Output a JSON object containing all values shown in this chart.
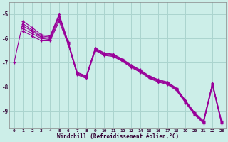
{
  "xlabel": "Windchill (Refroidissement éolien,°C)",
  "background_color": "#cceee8",
  "grid_color": "#aad4ce",
  "line_color": "#990099",
  "xlim": [
    -0.5,
    23.5
  ],
  "ylim": [
    -9.7,
    -4.5
  ],
  "yticks": [
    -9,
    -8,
    -7,
    -6,
    -5
  ],
  "xticks": [
    0,
    1,
    2,
    3,
    4,
    5,
    6,
    7,
    8,
    9,
    10,
    11,
    12,
    13,
    14,
    15,
    16,
    17,
    18,
    19,
    20,
    21,
    22,
    23
  ],
  "series": [
    [
      -7.0,
      -5.3,
      -5.55,
      -5.85,
      -5.9,
      -5.0,
      -6.15,
      -7.4,
      -7.55,
      -6.4,
      -6.6,
      -6.65,
      -6.85,
      -7.1,
      -7.3,
      -7.55,
      -7.7,
      -7.8,
      -8.05,
      -8.55,
      -9.05,
      -9.4,
      -7.85,
      -9.4
    ],
    [
      null,
      -5.4,
      -5.65,
      -5.9,
      -5.95,
      -5.05,
      -6.17,
      -7.42,
      -7.57,
      -6.42,
      -6.62,
      -6.67,
      -6.87,
      -7.12,
      -7.32,
      -7.57,
      -7.72,
      -7.82,
      -8.07,
      -8.57,
      -9.07,
      -9.42,
      -7.87,
      -9.42
    ],
    [
      null,
      -5.5,
      -5.7,
      -5.95,
      -6.0,
      -5.1,
      -6.2,
      -7.45,
      -7.6,
      -6.45,
      -6.65,
      -6.7,
      -6.9,
      -7.15,
      -7.35,
      -7.6,
      -7.75,
      -7.85,
      -8.1,
      -8.6,
      -9.1,
      -9.45,
      -7.9,
      -9.45
    ],
    [
      null,
      -5.6,
      -5.8,
      -6.0,
      -6.05,
      -5.2,
      -6.22,
      -7.47,
      -7.62,
      -6.47,
      -6.67,
      -6.72,
      -6.92,
      -7.17,
      -7.37,
      -7.62,
      -7.77,
      -7.87,
      -8.12,
      -8.62,
      -9.12,
      -9.47,
      -7.92,
      -9.47
    ],
    [
      null,
      -5.7,
      -5.9,
      -6.1,
      -6.1,
      -5.3,
      -6.25,
      -7.5,
      -7.65,
      -6.5,
      -6.7,
      -6.75,
      -6.95,
      -7.2,
      -7.4,
      -7.65,
      -7.8,
      -7.9,
      -8.15,
      -8.65,
      -9.15,
      -9.5,
      -7.95,
      -9.5
    ]
  ]
}
